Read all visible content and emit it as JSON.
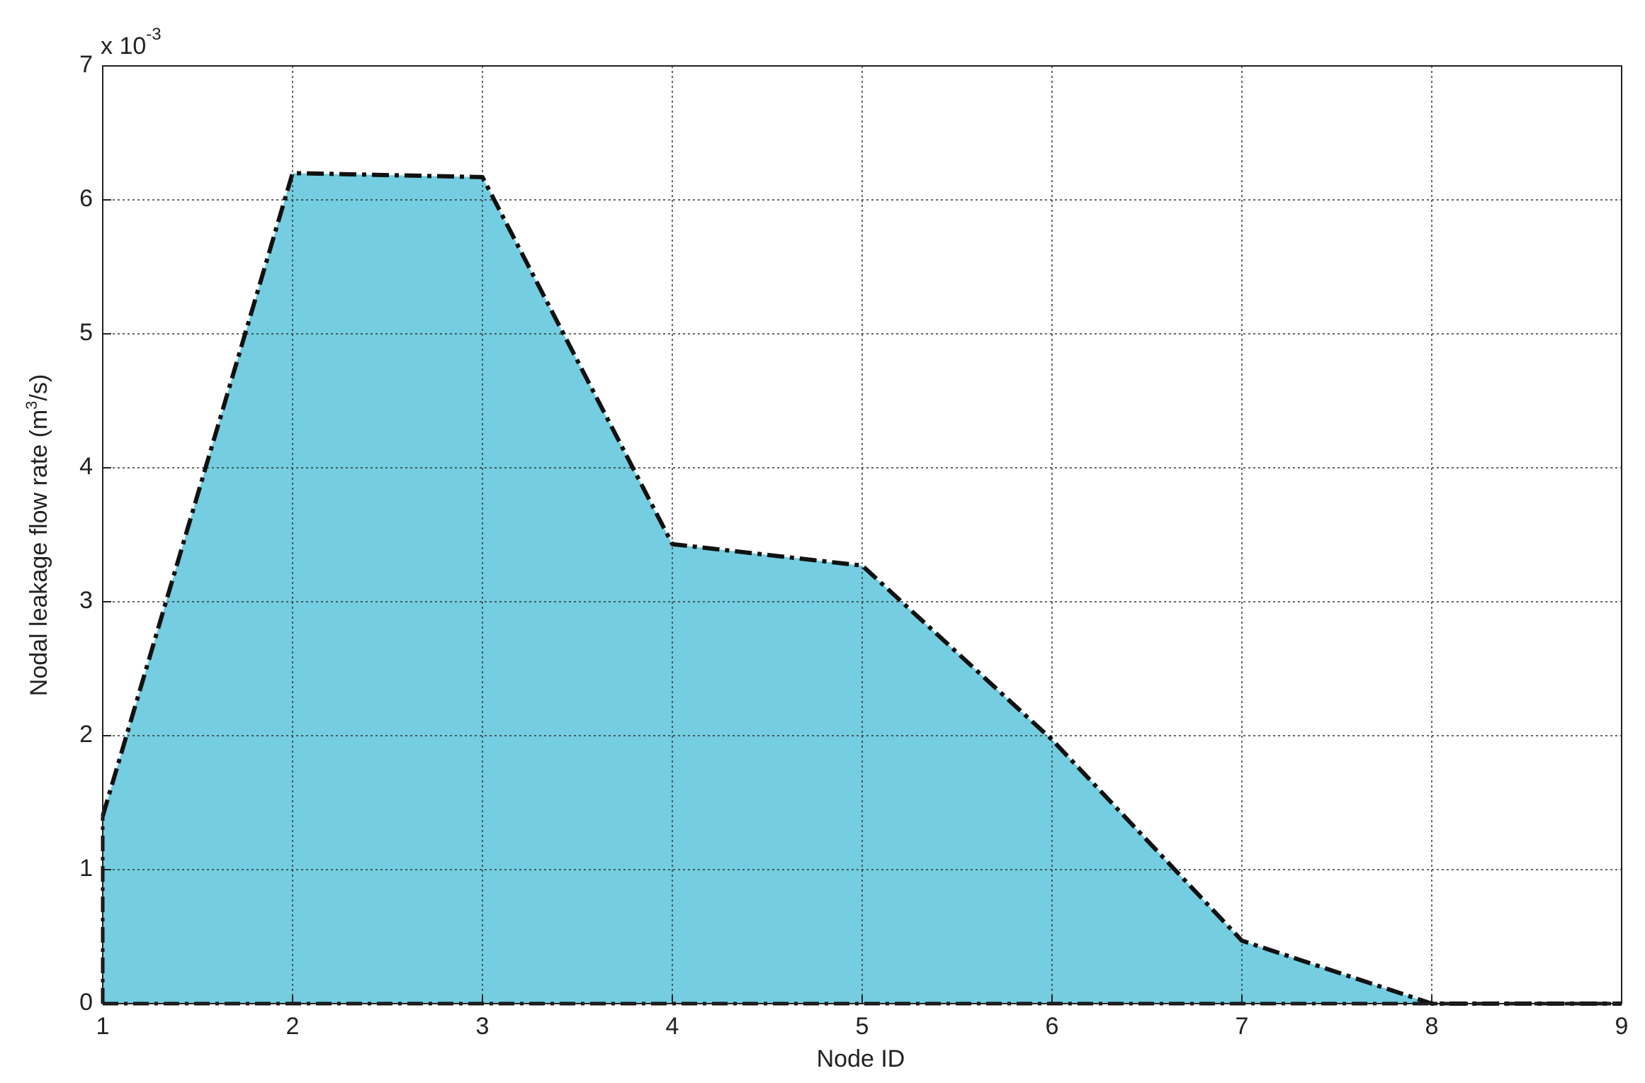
{
  "chart_data": {
    "type": "area",
    "x": [
      1,
      2,
      3,
      4,
      5,
      6,
      7,
      8,
      9
    ],
    "values": [
      1.4,
      6.2,
      6.17,
      3.43,
      3.27,
      1.97,
      0.47,
      0,
      0
    ],
    "color": "#74cde0",
    "line_color": "#111111",
    "x_label": "Node ID",
    "y_label": {
      "text": "Nodal leakage flow rate (m",
      "superscript": "3",
      "suffix": "/s)"
    },
    "y_multiplier": {
      "base": "x 10",
      "exponent": "-3"
    },
    "xlim": [
      1,
      9
    ],
    "xticks": [
      1,
      2,
      3,
      4,
      5,
      6,
      7,
      8,
      9
    ],
    "ylim": [
      0,
      7
    ],
    "yticks": [
      0,
      1,
      2,
      3,
      4,
      5,
      6,
      7
    ],
    "grid": true
  }
}
